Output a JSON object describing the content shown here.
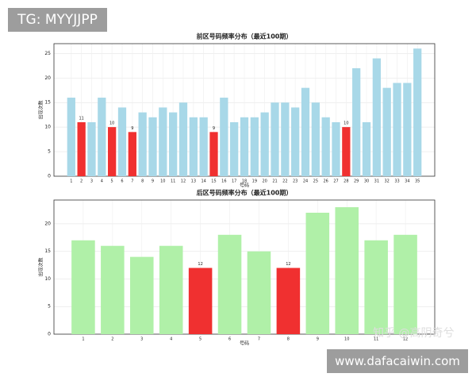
{
  "chart_data": [
    {
      "type": "bar",
      "title": "前区号码频率分布（最近100期）",
      "x_label": "号码",
      "y_label": "出现次数",
      "categories": [
        "1",
        "2",
        "3",
        "4",
        "5",
        "6",
        "7",
        "8",
        "9",
        "10",
        "11",
        "12",
        "13",
        "14",
        "15",
        "16",
        "17",
        "18",
        "19",
        "20",
        "21",
        "22",
        "23",
        "24",
        "25",
        "26",
        "27",
        "28",
        "29",
        "30",
        "31",
        "32",
        "33",
        "34",
        "35"
      ],
      "values": [
        16,
        11,
        11,
        16,
        10,
        14,
        9,
        13,
        12,
        14,
        13,
        15,
        12,
        12,
        9,
        16,
        11,
        12,
        12,
        13,
        15,
        15,
        14,
        18,
        15,
        12,
        11,
        10,
        22,
        11,
        24,
        18,
        19,
        19,
        26
      ],
      "color": "#a8d8e8",
      "highlight_color": "#f03030",
      "colors": [
        "#a8d8e8",
        "#f03030",
        "#a8d8e8",
        "#a8d8e8",
        "#f03030",
        "#a8d8e8",
        "#f03030",
        "#a8d8e8",
        "#a8d8e8",
        "#a8d8e8",
        "#a8d8e8",
        "#a8d8e8",
        "#a8d8e8",
        "#a8d8e8",
        "#f03030",
        "#a8d8e8",
        "#a8d8e8",
        "#a8d8e8",
        "#a8d8e8",
        "#a8d8e8",
        "#a8d8e8",
        "#a8d8e8",
        "#a8d8e8",
        "#a8d8e8",
        "#a8d8e8",
        "#a8d8e8",
        "#a8d8e8",
        "#f03030",
        "#a8d8e8",
        "#a8d8e8",
        "#a8d8e8",
        "#a8d8e8",
        "#a8d8e8",
        "#a8d8e8",
        "#a8d8e8"
      ],
      "ylim": [
        0,
        27
      ],
      "yticks": [
        0,
        5,
        10,
        15,
        20,
        25
      ],
      "grid": true
    },
    {
      "type": "bar",
      "title": "后区号码频率分布（最近100期）",
      "x_label": "号码",
      "y_label": "出现次数",
      "categories": [
        "1",
        "2",
        "3",
        "4",
        "5",
        "6",
        "7",
        "8",
        "9",
        "10",
        "11",
        "12"
      ],
      "values": [
        17,
        16,
        14,
        16,
        12,
        18,
        15,
        12,
        22,
        23,
        17,
        18
      ],
      "color": "#b0f0a8",
      "highlight_color": "#f03030",
      "colors": [
        "#b0f0a8",
        "#b0f0a8",
        "#b0f0a8",
        "#b0f0a8",
        "#f03030",
        "#b0f0a8",
        "#b0f0a8",
        "#f03030",
        "#b0f0a8",
        "#b0f0a8",
        "#b0f0a8",
        "#b0f0a8"
      ],
      "ylim": [
        0,
        24.3
      ],
      "yticks": [
        0,
        5,
        10,
        15,
        20
      ],
      "grid": true
    }
  ],
  "overlays": {
    "tag": "TG: MYYJJPP",
    "watermark": "知乎 @高阴奇兮",
    "site": "www.dafacaiwin.com"
  }
}
